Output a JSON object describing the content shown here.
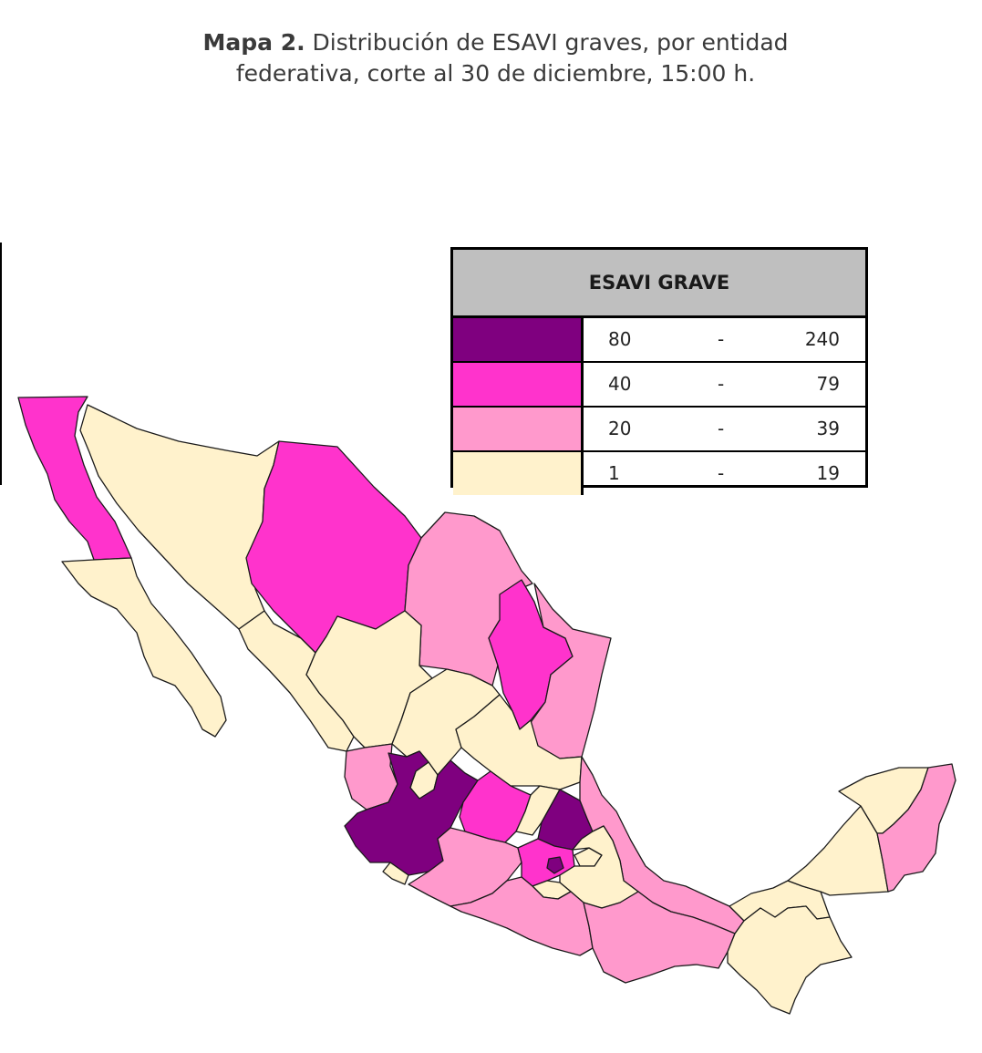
{
  "title": {
    "bold": "Mapa 2.",
    "line1": " Distribución de ESAVI graves, por entidad",
    "line2": "federativa, corte al 30 de diciembre, 15:00 h."
  },
  "legend": {
    "header": "ESAVI GRAVE",
    "separator": "-",
    "classes": [
      {
        "low": "80",
        "high": "240",
        "color": "#7f007f"
      },
      {
        "low": "40",
        "high": "79",
        "color": "#ff33cc"
      },
      {
        "low": "20",
        "high": "39",
        "color": "#ff99cc"
      },
      {
        "low": "1",
        "high": "19",
        "color": "#fff2cc"
      }
    ]
  },
  "states": [
    {
      "name": "Baja California",
      "class": 1
    },
    {
      "name": "Baja California Sur",
      "class": 3
    },
    {
      "name": "Sonora",
      "class": 3
    },
    {
      "name": "Chihuahua",
      "class": 1
    },
    {
      "name": "Coahuila",
      "class": 2
    },
    {
      "name": "Nuevo León",
      "class": 1
    },
    {
      "name": "Tamaulipas",
      "class": 2
    },
    {
      "name": "Sinaloa",
      "class": 3
    },
    {
      "name": "Durango",
      "class": 3
    },
    {
      "name": "Zacatecas",
      "class": 3
    },
    {
      "name": "San Luis Potosí",
      "class": 3
    },
    {
      "name": "Nayarit",
      "class": 2
    },
    {
      "name": "Aguascalientes",
      "class": 3
    },
    {
      "name": "Jalisco",
      "class": 0
    },
    {
      "name": "Guanajuato",
      "class": 1
    },
    {
      "name": "Querétaro",
      "class": 3
    },
    {
      "name": "Hidalgo",
      "class": 0
    },
    {
      "name": "Veracruz",
      "class": 2
    },
    {
      "name": "Colima",
      "class": 3
    },
    {
      "name": "Michoacán",
      "class": 2
    },
    {
      "name": "Estado de México",
      "class": 1
    },
    {
      "name": "Ciudad de México",
      "class": 0
    },
    {
      "name": "Tlaxcala",
      "class": 3
    },
    {
      "name": "Puebla",
      "class": 3
    },
    {
      "name": "Morelos",
      "class": 3
    },
    {
      "name": "Guerrero",
      "class": 2
    },
    {
      "name": "Oaxaca",
      "class": 2
    },
    {
      "name": "Tabasco",
      "class": 3
    },
    {
      "name": "Chiapas",
      "class": 3
    },
    {
      "name": "Campeche",
      "class": 3
    },
    {
      "name": "Yucatán",
      "class": 3
    },
    {
      "name": "Quintana Roo",
      "class": 2
    }
  ]
}
